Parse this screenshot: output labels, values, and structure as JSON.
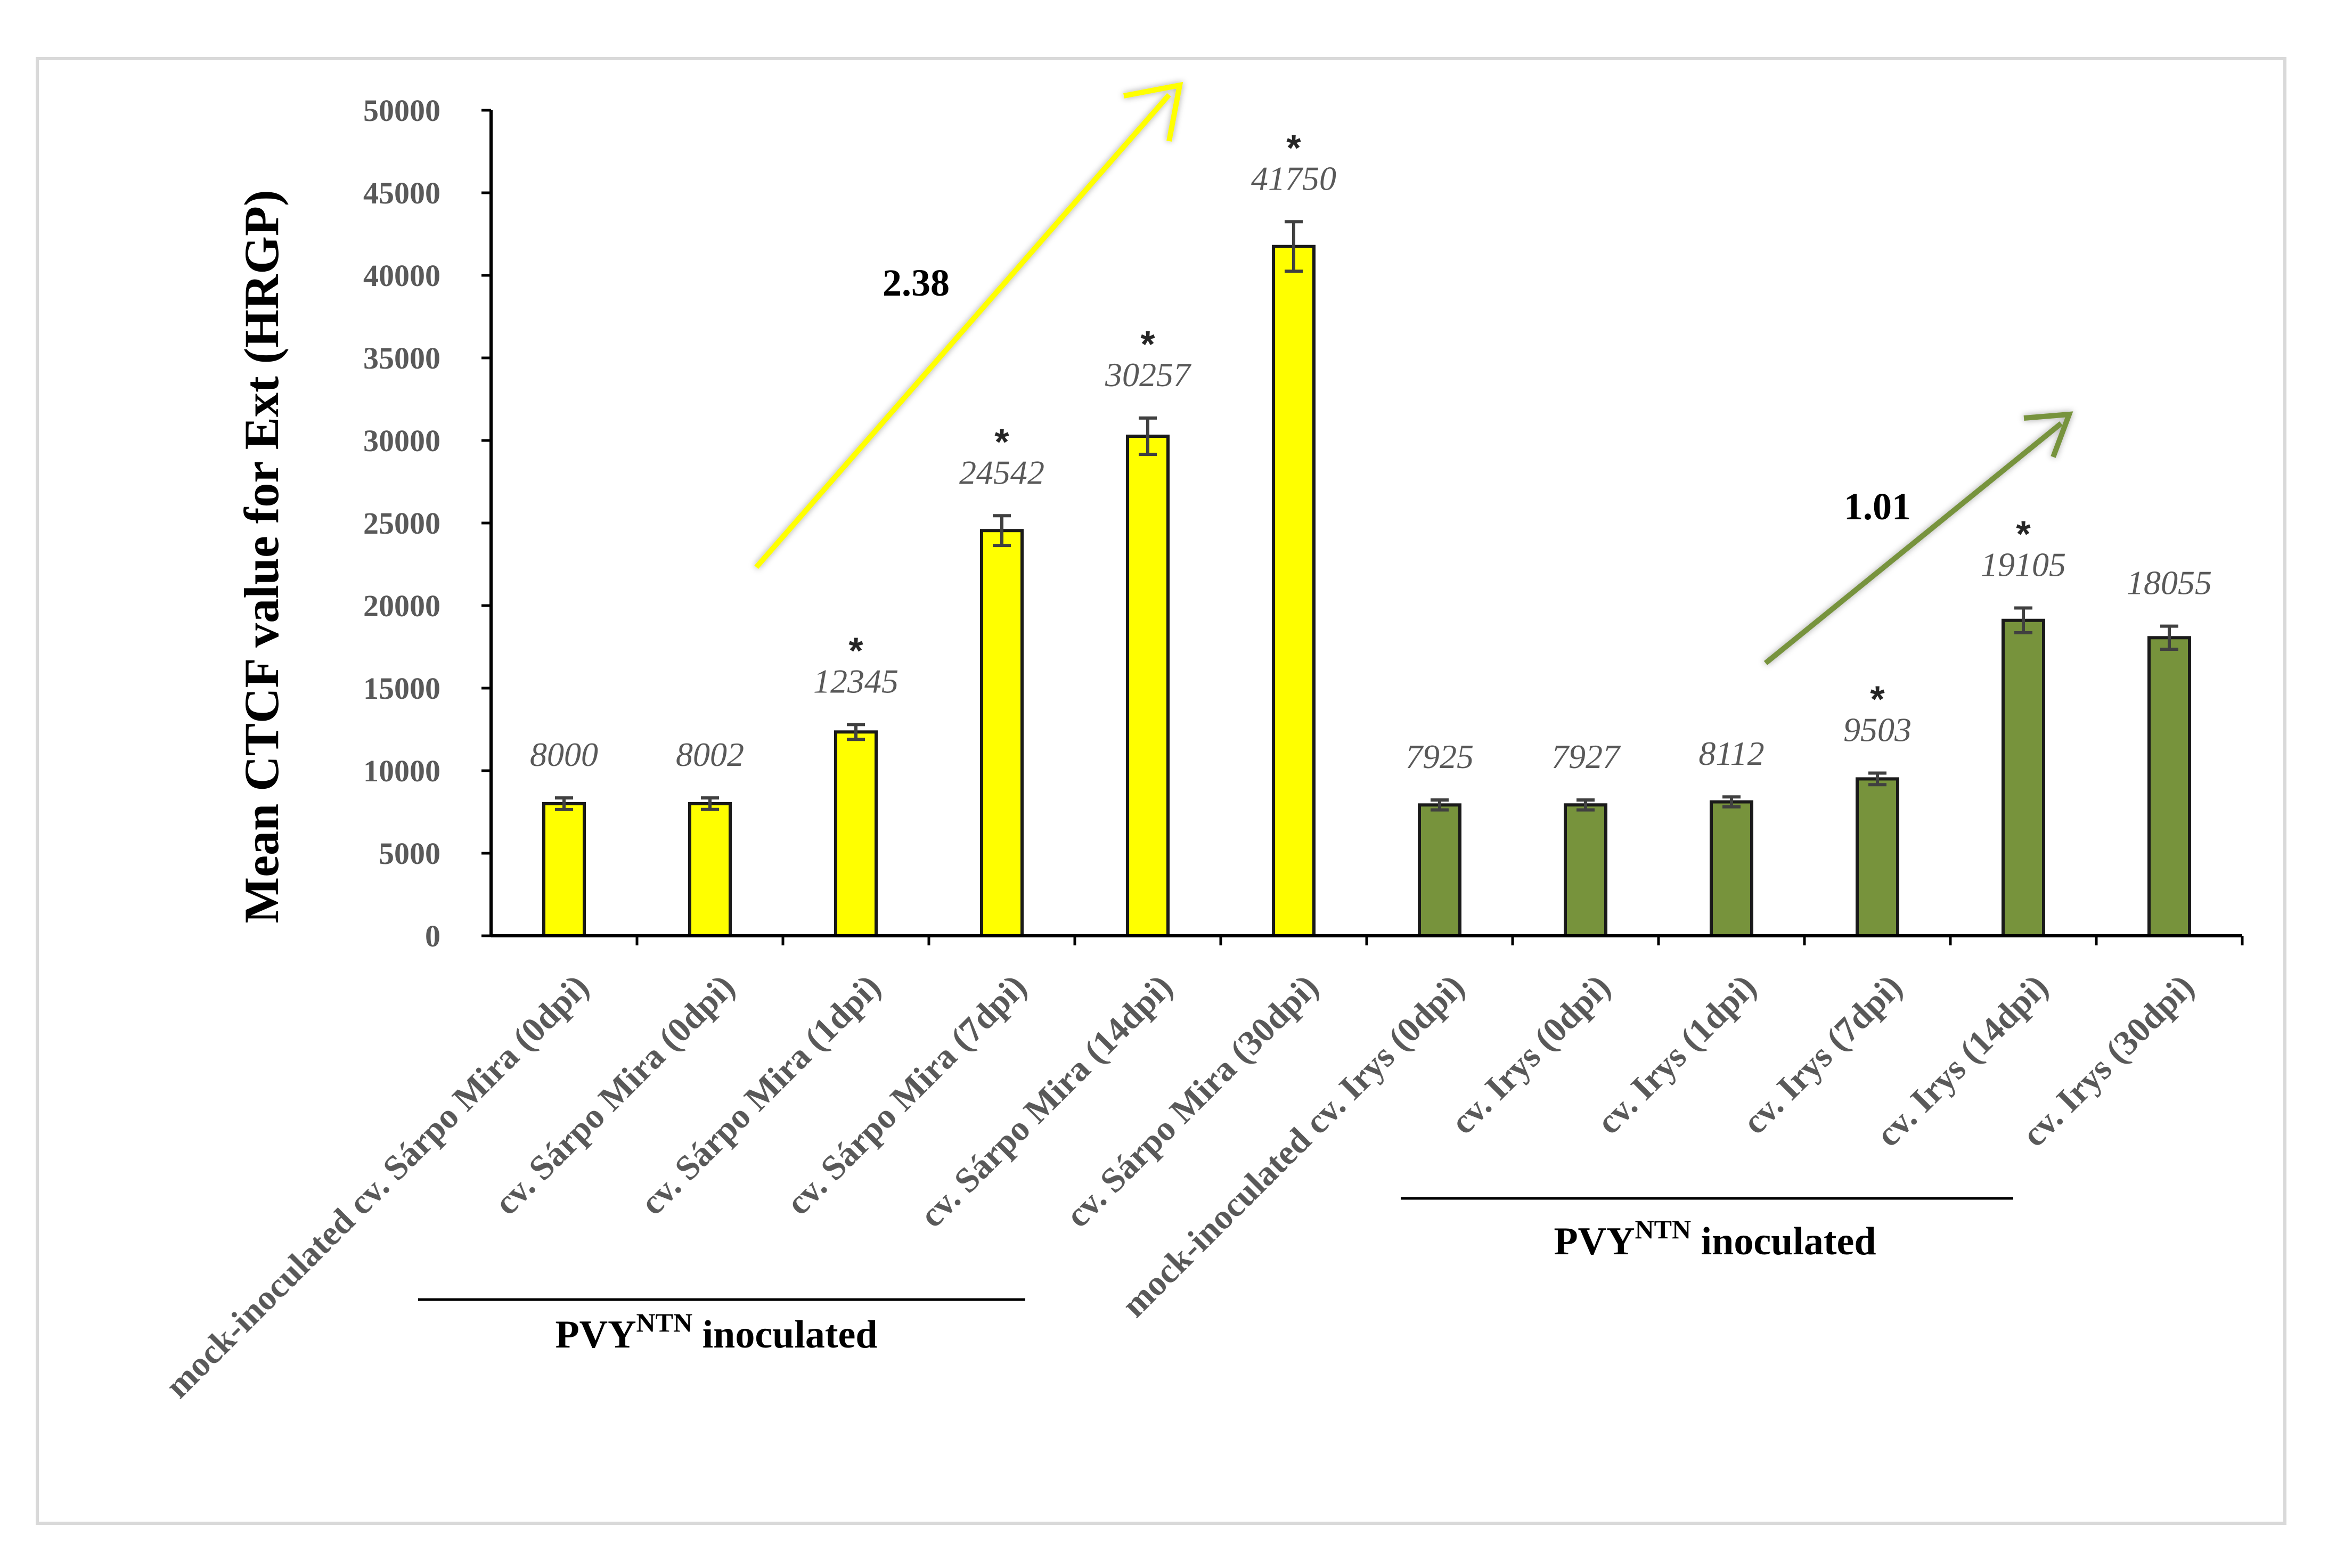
{
  "chart_data": {
    "type": "bar",
    "ylabel": "Mean CTCF value for Ext (HRGP)",
    "ylim": [
      0,
      50000
    ],
    "yticks": [
      0,
      5000,
      10000,
      15000,
      20000,
      25000,
      30000,
      35000,
      40000,
      45000,
      50000
    ],
    "categories": [
      "mock-inoculated cv. Sárpo Mira (0dpi)",
      "cv. Sárpo Mira (0dpi)",
      "cv. Sárpo Mira (1dpi)",
      "cv. Sárpo Mira (7dpi)",
      "cv. Sárpo Mira (14dpi)",
      "cv. Sárpo Mira (30dpi)",
      "mock-inoculated cv. Irys (0dpi)",
      "cv. Irys (0dpi)",
      "cv. Irys (1dpi)",
      "cv. Irys (7dpi)",
      "cv. Irys (14dpi)",
      "cv. Irys (30dpi)"
    ],
    "values": [
      8000,
      8002,
      12345,
      24542,
      30257,
      41750,
      7925,
      7927,
      8112,
      9503,
      19105,
      18055
    ],
    "errors": [
      350,
      350,
      450,
      900,
      1100,
      1500,
      300,
      300,
      300,
      350,
      750,
      700
    ],
    "data_labels": [
      "8000",
      "8002",
      "12345",
      "24542",
      "30257",
      "41750",
      "7925",
      "7927",
      "8112",
      "9503",
      "19105",
      "18055"
    ],
    "significant": [
      false,
      false,
      true,
      true,
      true,
      true,
      false,
      false,
      false,
      true,
      true,
      false
    ],
    "significance_marker": "*",
    "colors": [
      "#ffff00",
      "#ffff00",
      "#ffff00",
      "#ffff00",
      "#ffff00",
      "#ffff00",
      "#77933c",
      "#77933c",
      "#77933c",
      "#77933c",
      "#77933c",
      "#77933c"
    ],
    "groups": [
      {
        "prefix": "PVY",
        "superscript": "NTN",
        "suffix": " inoculated",
        "from_index": 1,
        "to_index": 5
      },
      {
        "prefix": "PVY",
        "superscript": "NTN",
        "suffix": " inoculated",
        "from_index": 7,
        "to_index": 10
      }
    ],
    "annotations": [
      {
        "text": "2.38",
        "arrow_color": "#ffff00"
      },
      {
        "text": "1.01",
        "arrow_color": "#77933c"
      }
    ]
  }
}
